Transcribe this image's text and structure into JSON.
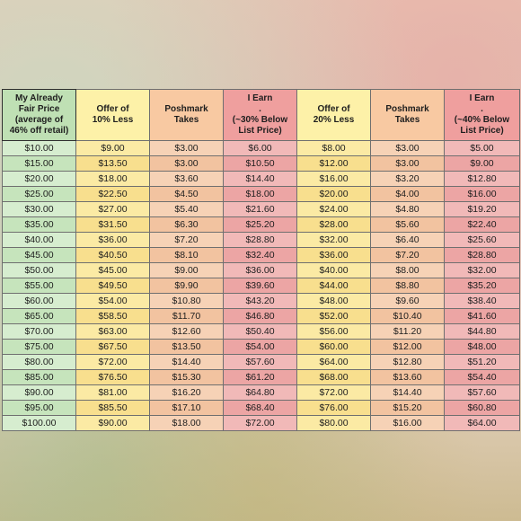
{
  "table": {
    "headers": [
      [
        "My Already",
        "Fair Price",
        "(average of",
        "46% off retail)"
      ],
      [
        "Offer of",
        "10% Less"
      ],
      [
        "Poshmark",
        "Takes"
      ],
      [
        "I Earn",
        ".",
        "(~30% Below",
        "List Price)"
      ],
      [
        "Offer of",
        "20% Less"
      ],
      [
        "Poshmark",
        "Takes"
      ],
      [
        "I Earn",
        ".",
        "(~40% Below",
        "List Price)"
      ]
    ],
    "rows": [
      [
        "$10.00",
        "$9.00",
        "$3.00",
        "$6.00",
        "$8.00",
        "$3.00",
        "$5.00"
      ],
      [
        "$15.00",
        "$13.50",
        "$3.00",
        "$10.50",
        "$12.00",
        "$3.00",
        "$9.00"
      ],
      [
        "$20.00",
        "$18.00",
        "$3.60",
        "$14.40",
        "$16.00",
        "$3.20",
        "$12.80"
      ],
      [
        "$25.00",
        "$22.50",
        "$4.50",
        "$18.00",
        "$20.00",
        "$4.00",
        "$16.00"
      ],
      [
        "$30.00",
        "$27.00",
        "$5.40",
        "$21.60",
        "$24.00",
        "$4.80",
        "$19.20"
      ],
      [
        "$35.00",
        "$31.50",
        "$6.30",
        "$25.20",
        "$28.00",
        "$5.60",
        "$22.40"
      ],
      [
        "$40.00",
        "$36.00",
        "$7.20",
        "$28.80",
        "$32.00",
        "$6.40",
        "$25.60"
      ],
      [
        "$45.00",
        "$40.50",
        "$8.10",
        "$32.40",
        "$36.00",
        "$7.20",
        "$28.80"
      ],
      [
        "$50.00",
        "$45.00",
        "$9.00",
        "$36.00",
        "$40.00",
        "$8.00",
        "$32.00"
      ],
      [
        "$55.00",
        "$49.50",
        "$9.90",
        "$39.60",
        "$44.00",
        "$8.80",
        "$35.20"
      ],
      [
        "$60.00",
        "$54.00",
        "$10.80",
        "$43.20",
        "$48.00",
        "$9.60",
        "$38.40"
      ],
      [
        "$65.00",
        "$58.50",
        "$11.70",
        "$46.80",
        "$52.00",
        "$10.40",
        "$41.60"
      ],
      [
        "$70.00",
        "$63.00",
        "$12.60",
        "$50.40",
        "$56.00",
        "$11.20",
        "$44.80"
      ],
      [
        "$75.00",
        "$67.50",
        "$13.50",
        "$54.00",
        "$60.00",
        "$12.00",
        "$48.00"
      ],
      [
        "$80.00",
        "$72.00",
        "$14.40",
        "$57.60",
        "$64.00",
        "$12.80",
        "$51.20"
      ],
      [
        "$85.00",
        "$76.50",
        "$15.30",
        "$61.20",
        "$68.00",
        "$13.60",
        "$54.40"
      ],
      [
        "$90.00",
        "$81.00",
        "$16.20",
        "$64.80",
        "$72.00",
        "$14.40",
        "$57.60"
      ],
      [
        "$95.00",
        "$85.50",
        "$17.10",
        "$68.40",
        "$76.00",
        "$15.20",
        "$60.80"
      ],
      [
        "$100.00",
        "$90.00",
        "$18.00",
        "$72.00",
        "$80.00",
        "$16.00",
        "$64.00"
      ]
    ]
  }
}
